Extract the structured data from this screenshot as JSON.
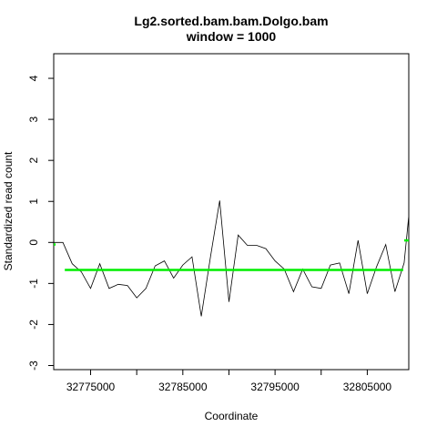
{
  "chart_data": {
    "type": "line",
    "title": "Lg2.sorted.bam.bam.Dolgo.bam",
    "subtitle": "window = 1000",
    "xlabel": "Coordinate",
    "ylabel": "Standardized read count",
    "xlim": [
      32771000,
      32809500
    ],
    "ylim": [
      -3.1,
      4.6
    ],
    "x_ticks": [
      32770000,
      32775000,
      32780000,
      32785000,
      32790000,
      32795000,
      32800000,
      32805000
    ],
    "x_tick_labels": [
      "32775000",
      "32785000",
      "32795000",
      "32805000"
    ],
    "y_ticks": [
      -3,
      -2,
      -1,
      0,
      1,
      2,
      3,
      4
    ],
    "y_tick_labels": [
      "-3",
      "-2",
      "-1",
      "0",
      "1",
      "2",
      "3",
      "4"
    ],
    "grid": false,
    "series": [
      {
        "color": "#000000",
        "x": [
          32771000,
          32772000,
          32773000,
          32774000,
          32775000,
          32776000,
          32777000,
          32778000,
          32779000,
          32780000,
          32781000,
          32782000,
          32783000,
          32784000,
          32785000,
          32786000,
          32787000,
          32788000,
          32789000,
          32790000,
          32791000,
          32792000,
          32793000,
          32794000,
          32795000,
          32796000,
          32797000,
          32798000,
          32799000,
          32800000,
          32801000,
          32802000,
          32803000,
          32804000,
          32805000,
          32806000,
          32807000,
          32808000,
          32809000,
          32809500
        ],
        "y": [
          0.0,
          0.0,
          -0.52,
          -0.72,
          -1.12,
          -0.52,
          -1.12,
          -1.02,
          -1.05,
          -1.35,
          -1.12,
          -0.57,
          -0.45,
          -0.87,
          -0.55,
          -0.35,
          -1.8,
          -0.35,
          1.02,
          -1.45,
          0.18,
          -0.07,
          -0.07,
          -0.15,
          -0.45,
          -0.65,
          -1.2,
          -0.65,
          -1.08,
          -1.12,
          -0.55,
          -0.5,
          -1.25,
          0.05,
          -1.25,
          -0.6,
          -0.05,
          -1.2,
          -0.5,
          0.65
        ]
      }
    ],
    "segments": [
      {
        "color": "#00ee00",
        "x": [
          32771000,
          32771200
        ],
        "y": [
          -0.05,
          -0.05
        ]
      },
      {
        "color": "#00ee00",
        "x": [
          32772200,
          32808900
        ],
        "y": [
          -0.67,
          -0.67
        ]
      },
      {
        "color": "#00ee00",
        "x": [
          32809000,
          32809500
        ],
        "y": [
          0.05,
          0.05
        ]
      }
    ]
  }
}
